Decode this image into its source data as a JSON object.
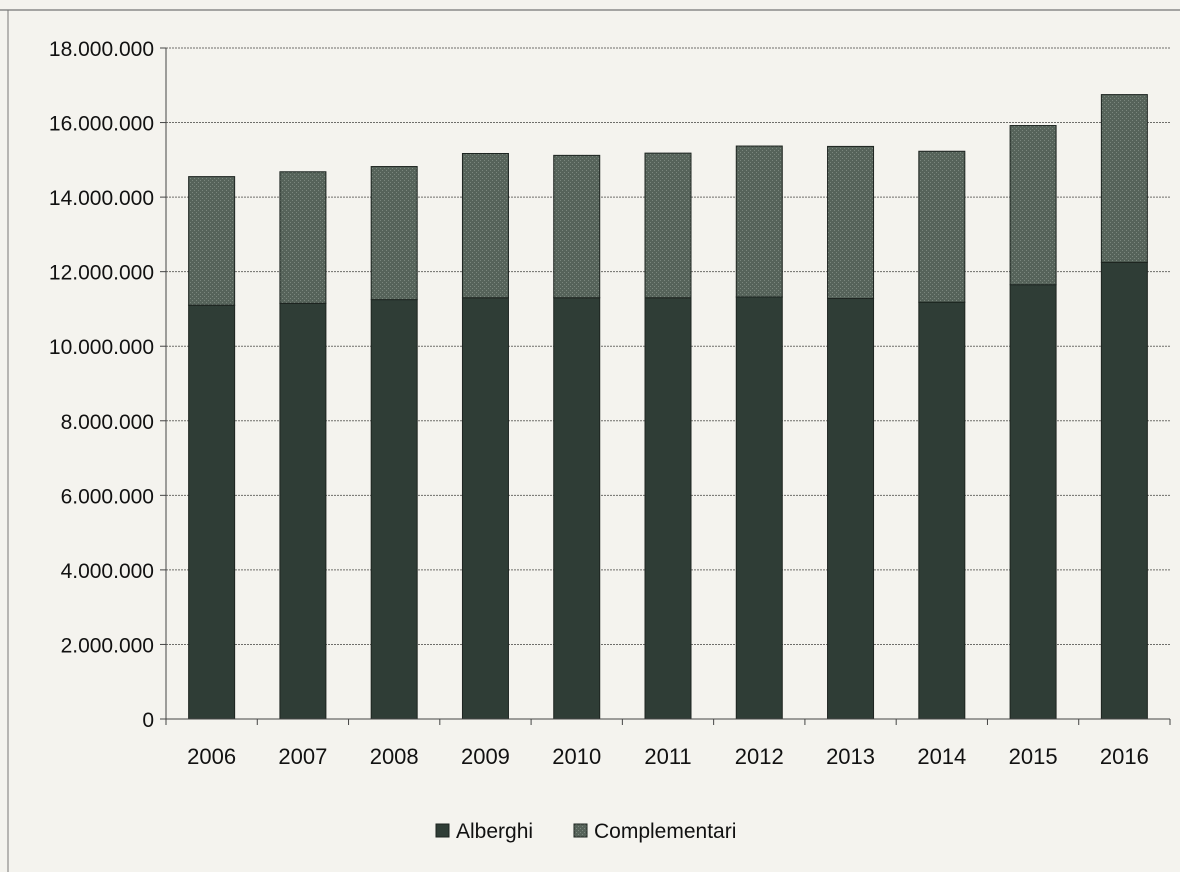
{
  "chart_data": {
    "type": "bar",
    "stacked": true,
    "title": "",
    "xlabel": "",
    "ylabel": "",
    "categories": [
      "2006",
      "2007",
      "2008",
      "2009",
      "2010",
      "2011",
      "2012",
      "2013",
      "2014",
      "2015",
      "2016"
    ],
    "series": [
      {
        "name": "Alberghi",
        "color": "#2f3d36",
        "values": [
          11100000,
          11150000,
          11250000,
          11300000,
          11300000,
          11300000,
          11320000,
          11280000,
          11180000,
          11650000,
          12250000
        ]
      },
      {
        "name": "Complementari",
        "color": "#56635a",
        "values": [
          3450000,
          3530000,
          3570000,
          3870000,
          3820000,
          3880000,
          4050000,
          4080000,
          4050000,
          4270000,
          4500000
        ]
      }
    ],
    "ylim": [
      0,
      18000000
    ],
    "yticks": [
      0,
      2000000,
      4000000,
      6000000,
      8000000,
      10000000,
      12000000,
      14000000,
      16000000,
      18000000
    ],
    "ytick_labels": [
      "0",
      "2.000.000",
      "4.000.000",
      "6.000.000",
      "8.000.000",
      "10.000.000",
      "12.000.000",
      "14.000.000",
      "16.000.000",
      "18.000.000"
    ],
    "grid": true,
    "legend_position": "bottom-center"
  }
}
